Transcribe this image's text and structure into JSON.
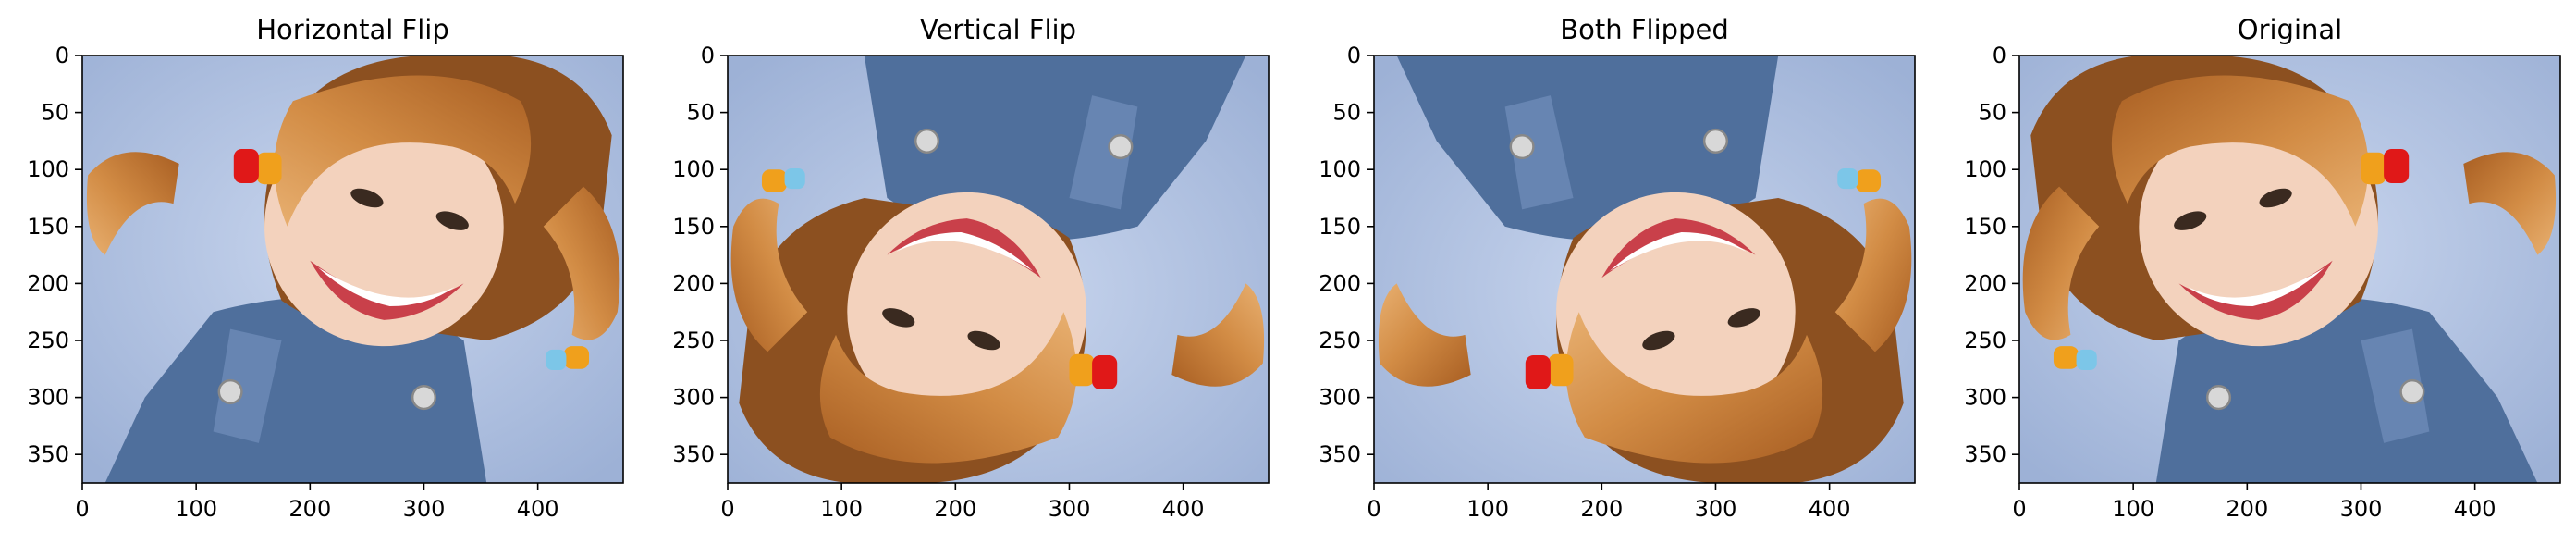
{
  "figure": {
    "type": "image_grid",
    "panel_order": [
      "horizontal",
      "vertical",
      "both",
      "original"
    ]
  },
  "chart_data": [
    {
      "type": "image",
      "title": "Horizontal Flip",
      "flip": "horizontal",
      "xlim": [
        0,
        475
      ],
      "ylim": [
        375,
        0
      ],
      "xticks": [
        0,
        100,
        200,
        300,
        400
      ],
      "yticks": [
        0,
        50,
        100,
        150,
        200,
        250,
        300,
        350
      ],
      "xlabel": "",
      "ylabel": ""
    },
    {
      "type": "image",
      "title": "Vertical Flip",
      "flip": "vertical",
      "xlim": [
        0,
        475
      ],
      "ylim": [
        375,
        0
      ],
      "xticks": [
        0,
        100,
        200,
        300,
        400
      ],
      "yticks": [
        0,
        50,
        100,
        150,
        200,
        250,
        300,
        350
      ],
      "xlabel": "",
      "ylabel": ""
    },
    {
      "type": "image",
      "title": "Both Flipped",
      "flip": "both",
      "xlim": [
        0,
        475
      ],
      "ylim": [
        375,
        0
      ],
      "xticks": [
        0,
        100,
        200,
        300,
        400
      ],
      "yticks": [
        0,
        50,
        100,
        150,
        200,
        250,
        300,
        350
      ],
      "xlabel": "",
      "ylabel": ""
    },
    {
      "type": "image",
      "title": "Original",
      "flip": "none",
      "xlim": [
        0,
        475
      ],
      "ylim": [
        375,
        0
      ],
      "xticks": [
        0,
        100,
        200,
        300,
        400
      ],
      "yticks": [
        0,
        50,
        100,
        150,
        200,
        250,
        300,
        350
      ],
      "xlabel": "",
      "ylabel": ""
    }
  ],
  "colors": {
    "background": "#b5c6e3",
    "hair": "#c07a34",
    "hair_dark": "#8c5020",
    "skin": "#f3d2bd",
    "overalls": "#4f6f9c",
    "band_red": "#e01818",
    "band_orange": "#f0a01c",
    "band_blue": "#7cc6e8",
    "eye": "#3a2a20",
    "teeth": "#ffffff",
    "lips": "#c9404a"
  }
}
